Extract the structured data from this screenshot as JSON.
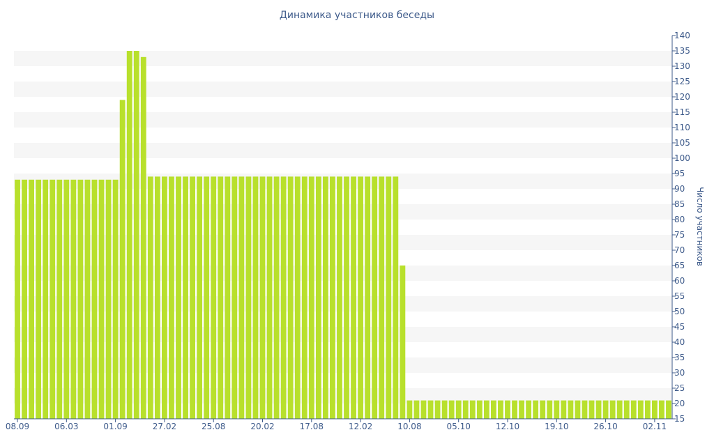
{
  "chart_data": {
    "type": "bar",
    "title": "Динамика участников беседы",
    "xlabel": "",
    "ylabel": "Число участников",
    "ylim": [
      15,
      140
    ],
    "y_ticks": [
      15,
      20,
      25,
      30,
      35,
      40,
      45,
      50,
      55,
      60,
      65,
      70,
      75,
      80,
      85,
      90,
      95,
      100,
      105,
      110,
      115,
      120,
      125,
      130,
      135,
      140
    ],
    "x_tick_labels": [
      {
        "index": 0,
        "label": "08.09"
      },
      {
        "index": 7,
        "label": "06.03"
      },
      {
        "index": 14,
        "label": "01.09"
      },
      {
        "index": 21,
        "label": "27.02"
      },
      {
        "index": 28,
        "label": "25.08"
      },
      {
        "index": 35,
        "label": "20.02"
      },
      {
        "index": 42,
        "label": "17.08"
      },
      {
        "index": 49,
        "label": "12.02"
      },
      {
        "index": 56,
        "label": "10.08"
      },
      {
        "index": 63,
        "label": "05.10"
      },
      {
        "index": 70,
        "label": "12.10"
      },
      {
        "index": 77,
        "label": "19.10"
      },
      {
        "index": 84,
        "label": "26.10"
      },
      {
        "index": 91,
        "label": "02.11"
      }
    ],
    "values": [
      93,
      93,
      93,
      93,
      93,
      93,
      93,
      93,
      93,
      93,
      93,
      93,
      93,
      93,
      93,
      119,
      135,
      135,
      133,
      94,
      94,
      94,
      94,
      94,
      94,
      94,
      94,
      94,
      94,
      94,
      94,
      94,
      94,
      94,
      94,
      94,
      94,
      94,
      94,
      94,
      94,
      94,
      94,
      94,
      94,
      94,
      94,
      94,
      94,
      94,
      94,
      94,
      94,
      94,
      94,
      65,
      21,
      21,
      21,
      21,
      21,
      21,
      21,
      21,
      21,
      21,
      21,
      21,
      21,
      21,
      21,
      21,
      21,
      21,
      21,
      21,
      21,
      21,
      21,
      21,
      21,
      21,
      21,
      21,
      21,
      21,
      21,
      21,
      21,
      21,
      21,
      21,
      21,
      21
    ],
    "colors": {
      "bar": "#b8e02c",
      "band": "#f6f6f6",
      "text": "#3d5a8a",
      "axis": "#3d5a8a"
    },
    "grid": "alternating horizontal bands"
  }
}
